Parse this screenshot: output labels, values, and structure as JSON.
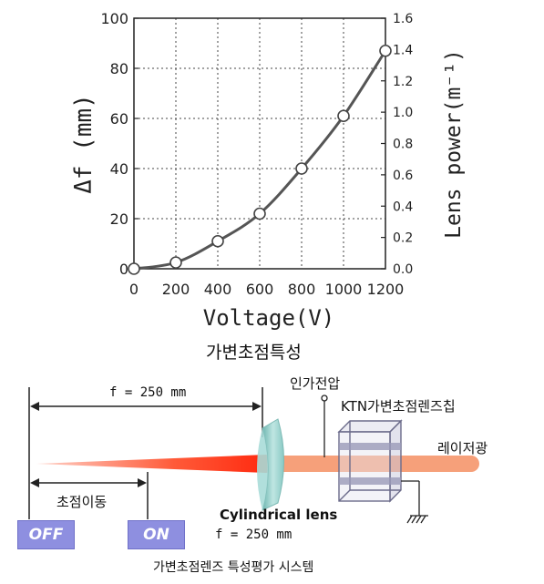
{
  "chart_data": {
    "type": "line",
    "xlabel": "Voltage(V)",
    "ylabel": "Δf (mm)",
    "ylabel_right": "Lens power(m⁻¹)",
    "xlim": [
      0,
      1200
    ],
    "ylim": [
      0,
      100
    ],
    "ylim_right": [
      0,
      1.6
    ],
    "x_ticks": [
      "0",
      "200",
      "400",
      "600",
      "800",
      "1000",
      "1200"
    ],
    "y_ticks": [
      "0",
      "20",
      "40",
      "60",
      "80",
      "100"
    ],
    "y_ticks_right": [
      "0.0",
      "0.2",
      "0.4",
      "0.6",
      "0.8",
      "1.0",
      "1.2",
      "1.4",
      "1.6"
    ],
    "grid": true,
    "series": [
      {
        "x": [
          0,
          200,
          400,
          600,
          800,
          1000,
          1200
        ],
        "y": [
          0,
          2.5,
          11,
          22,
          40,
          61,
          87
        ]
      }
    ]
  },
  "chart_caption": "가변초점특성",
  "system": {
    "f_top_label": "f = 250 mm",
    "voltage_label": "인가전압",
    "ktn_label": "KTN가변초점렌즈칩",
    "laser_label": "레이저광",
    "focus_shift_label": "초점이동",
    "lens_label": "Cylindrical lens",
    "lens_f_label": "f = 250 mm",
    "off_label": "OFF",
    "on_label": "ON",
    "caption": "가변초점렌즈 특성평가 시스템",
    "colors": {
      "beam_red": "#ff3a1a",
      "beam_orange": "#f6a07a",
      "lens": "#9ad3cf",
      "button": "#8e8fe0"
    }
  }
}
